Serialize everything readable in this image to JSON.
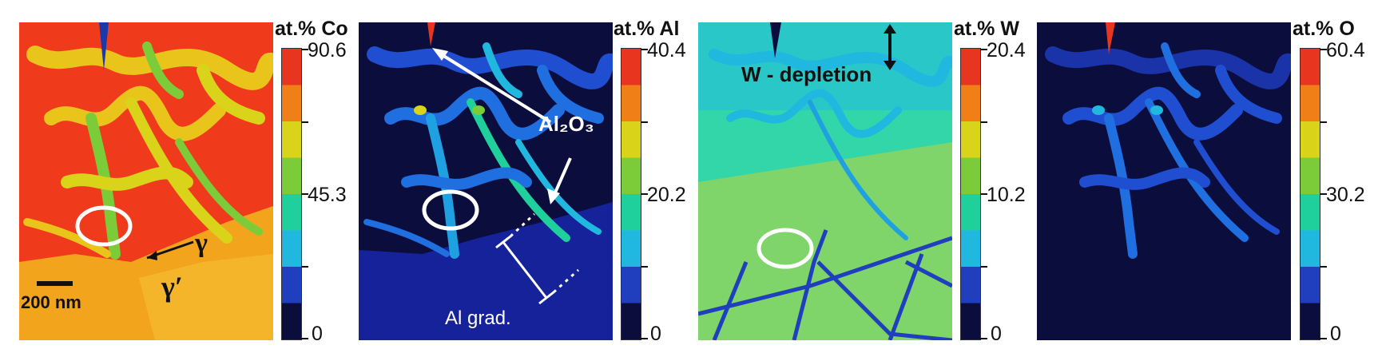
{
  "panels": [
    {
      "element": "Co",
      "colorbar_title": "at.% Co",
      "colorbar_ticks": [
        "90.6",
        "45.3",
        "0"
      ],
      "annotations": {
        "phase_gamma": "γ",
        "phase_gamma_prime": "γ′",
        "scale_bar": "200 nm"
      }
    },
    {
      "element": "Al",
      "colorbar_title": "at.% Al",
      "colorbar_ticks": [
        "40.4",
        "20.2",
        "0"
      ],
      "annotations": {
        "oxide_label": "Al₂O₃",
        "gradient_label": "Al grad."
      }
    },
    {
      "element": "W",
      "colorbar_title": "at.% W",
      "colorbar_ticks": [
        "20.4",
        "10.2",
        "0"
      ],
      "annotations": {
        "depletion_label": "W - depletion"
      }
    },
    {
      "element": "O",
      "colorbar_title": "at.% O",
      "colorbar_ticks": [
        "60.4",
        "30.2",
        "0"
      ],
      "annotations": {}
    }
  ],
  "colorscale": [
    "#e8351f",
    "#f07f18",
    "#d9d31a",
    "#7ccc3a",
    "#1fcf9c",
    "#21b8e0",
    "#1f3fbf",
    "#0b0d3d"
  ]
}
